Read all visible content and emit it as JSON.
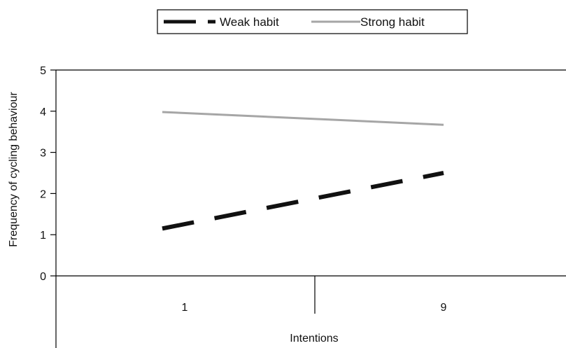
{
  "chart_data": {
    "type": "line",
    "title": "",
    "xlabel": "Intentions",
    "ylabel": "Frequency of cycling behaviour",
    "categories": [
      "1",
      "9"
    ],
    "ylim": [
      0,
      5
    ],
    "yticks": [
      "0",
      "1",
      "2",
      "3",
      "4",
      "5"
    ],
    "grid": false,
    "legend_position": "top-center",
    "series": [
      {
        "name": "Weak habit",
        "values": [
          1.15,
          2.5
        ],
        "color": "#111111",
        "style": "dashed"
      },
      {
        "name": "Strong habit",
        "values": [
          3.98,
          3.67
        ],
        "color": "#a6a6a6",
        "style": "solid"
      }
    ]
  }
}
